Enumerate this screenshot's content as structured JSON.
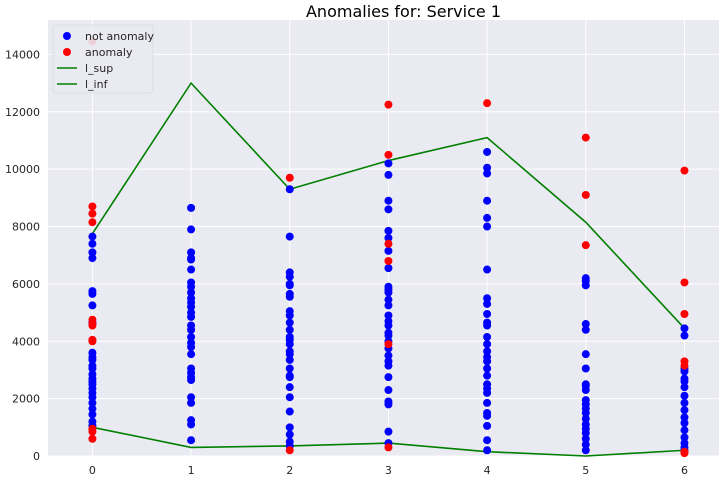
{
  "chart_data": {
    "type": "scatter",
    "title": "Anomalies for: Service 1",
    "xlabel": "",
    "ylabel": "",
    "xlim": [
      -0.45,
      6.35
    ],
    "ylim": [
      0,
      15200
    ],
    "x_ticks": [
      0,
      1,
      2,
      3,
      4,
      5,
      6
    ],
    "y_ticks": [
      0,
      2000,
      4000,
      6000,
      8000,
      10000,
      12000,
      14000
    ],
    "grid": true,
    "legend_position": "top-left",
    "colors": {
      "background": "#eaeaf2",
      "grid": "#ffffff",
      "not_anomaly": "#0000ff",
      "anomaly": "#ff0000",
      "bounds": "#008000"
    },
    "legend": [
      {
        "label": "not anomaly",
        "kind": "marker",
        "color": "#0000ff"
      },
      {
        "label": "anomaly",
        "kind": "marker",
        "color": "#ff0000"
      },
      {
        "label": "l_sup",
        "kind": "line",
        "color": "#008000"
      },
      {
        "label": "l_inf",
        "kind": "line",
        "color": "#008000"
      }
    ],
    "series": [
      {
        "name": "not anomaly",
        "color": "#0000ff",
        "points": [
          [
            0,
            7650
          ],
          [
            0,
            7400
          ],
          [
            0,
            7100
          ],
          [
            0,
            6900
          ],
          [
            0,
            5750
          ],
          [
            0,
            5650
          ],
          [
            0,
            5250
          ],
          [
            0,
            4650
          ],
          [
            0,
            3600
          ],
          [
            0,
            3450
          ],
          [
            0,
            3350
          ],
          [
            0,
            3150
          ],
          [
            0,
            3050
          ],
          [
            0,
            2850
          ],
          [
            0,
            2700
          ],
          [
            0,
            2600
          ],
          [
            0,
            2500
          ],
          [
            0,
            2350
          ],
          [
            0,
            2200
          ],
          [
            0,
            2050
          ],
          [
            0,
            1850
          ],
          [
            0,
            1650
          ],
          [
            0,
            1450
          ],
          [
            0,
            1200
          ],
          [
            0,
            1050
          ],
          [
            1,
            8650
          ],
          [
            1,
            7900
          ],
          [
            1,
            7100
          ],
          [
            1,
            6900
          ],
          [
            1,
            6850
          ],
          [
            1,
            6500
          ],
          [
            1,
            6050
          ],
          [
            1,
            5900
          ],
          [
            1,
            5700
          ],
          [
            1,
            5500
          ],
          [
            1,
            5350
          ],
          [
            1,
            5200
          ],
          [
            1,
            5000
          ],
          [
            1,
            4850
          ],
          [
            1,
            4550
          ],
          [
            1,
            4400
          ],
          [
            1,
            4150
          ],
          [
            1,
            3950
          ],
          [
            1,
            3800
          ],
          [
            1,
            3550
          ],
          [
            1,
            3050
          ],
          [
            1,
            2900
          ],
          [
            1,
            2750
          ],
          [
            1,
            2650
          ],
          [
            1,
            2050
          ],
          [
            1,
            1850
          ],
          [
            1,
            1250
          ],
          [
            1,
            1100
          ],
          [
            1,
            550
          ],
          [
            2,
            9300
          ],
          [
            2,
            7650
          ],
          [
            2,
            6400
          ],
          [
            2,
            6250
          ],
          [
            2,
            6000
          ],
          [
            2,
            5950
          ],
          [
            2,
            5650
          ],
          [
            2,
            5550
          ],
          [
            2,
            5050
          ],
          [
            2,
            4900
          ],
          [
            2,
            4650
          ],
          [
            2,
            4400
          ],
          [
            2,
            4150
          ],
          [
            2,
            4050
          ],
          [
            2,
            3900
          ],
          [
            2,
            3650
          ],
          [
            2,
            3550
          ],
          [
            2,
            3350
          ],
          [
            2,
            3050
          ],
          [
            2,
            2800
          ],
          [
            2,
            2750
          ],
          [
            2,
            2400
          ],
          [
            2,
            2050
          ],
          [
            2,
            1550
          ],
          [
            2,
            1000
          ],
          [
            2,
            750
          ],
          [
            2,
            500
          ],
          [
            2,
            350
          ],
          [
            3,
            10200
          ],
          [
            3,
            9800
          ],
          [
            3,
            8900
          ],
          [
            3,
            8600
          ],
          [
            3,
            7850
          ],
          [
            3,
            7600
          ],
          [
            3,
            7150
          ],
          [
            3,
            6550
          ],
          [
            3,
            5900
          ],
          [
            3,
            5800
          ],
          [
            3,
            5700
          ],
          [
            3,
            5450
          ],
          [
            3,
            5250
          ],
          [
            3,
            4900
          ],
          [
            3,
            4700
          ],
          [
            3,
            4550
          ],
          [
            3,
            4300
          ],
          [
            3,
            4200
          ],
          [
            3,
            4000
          ],
          [
            3,
            3750
          ],
          [
            3,
            3500
          ],
          [
            3,
            3300
          ],
          [
            3,
            3150
          ],
          [
            3,
            2750
          ],
          [
            3,
            2300
          ],
          [
            3,
            1900
          ],
          [
            3,
            1800
          ],
          [
            3,
            850
          ],
          [
            3,
            450
          ],
          [
            4,
            10600
          ],
          [
            4,
            10050
          ],
          [
            4,
            9850
          ],
          [
            4,
            8900
          ],
          [
            4,
            8300
          ],
          [
            4,
            8000
          ],
          [
            4,
            6500
          ],
          [
            4,
            5500
          ],
          [
            4,
            5300
          ],
          [
            4,
            4950
          ],
          [
            4,
            4650
          ],
          [
            4,
            4550
          ],
          [
            4,
            4150
          ],
          [
            4,
            3900
          ],
          [
            4,
            3650
          ],
          [
            4,
            3450
          ],
          [
            4,
            3300
          ],
          [
            4,
            3050
          ],
          [
            4,
            2800
          ],
          [
            4,
            2500
          ],
          [
            4,
            2350
          ],
          [
            4,
            2200
          ],
          [
            4,
            1850
          ],
          [
            4,
            1500
          ],
          [
            4,
            1400
          ],
          [
            4,
            1050
          ],
          [
            4,
            550
          ],
          [
            4,
            200
          ],
          [
            5,
            6200
          ],
          [
            5,
            6100
          ],
          [
            5,
            5950
          ],
          [
            5,
            4600
          ],
          [
            5,
            4400
          ],
          [
            5,
            3550
          ],
          [
            5,
            3050
          ],
          [
            5,
            2500
          ],
          [
            5,
            2450
          ],
          [
            5,
            2300
          ],
          [
            5,
            1950
          ],
          [
            5,
            1800
          ],
          [
            5,
            1650
          ],
          [
            5,
            1500
          ],
          [
            5,
            1300
          ],
          [
            5,
            1100
          ],
          [
            5,
            950
          ],
          [
            5,
            800
          ],
          [
            5,
            600
          ],
          [
            5,
            400
          ],
          [
            5,
            200
          ],
          [
            6,
            4450
          ],
          [
            6,
            4200
          ],
          [
            6,
            3050
          ],
          [
            6,
            2950
          ],
          [
            6,
            2700
          ],
          [
            6,
            2600
          ],
          [
            6,
            2400
          ],
          [
            6,
            2100
          ],
          [
            6,
            1850
          ],
          [
            6,
            1600
          ],
          [
            6,
            1350
          ],
          [
            6,
            1150
          ],
          [
            6,
            900
          ],
          [
            6,
            650
          ],
          [
            6,
            450
          ],
          [
            6,
            300
          ],
          [
            6,
            200
          ]
        ]
      },
      {
        "name": "anomaly",
        "color": "#ff0000",
        "points": [
          [
            0,
            14450
          ],
          [
            0,
            8700
          ],
          [
            0,
            8450
          ],
          [
            0,
            8150
          ],
          [
            0,
            4750
          ],
          [
            0,
            4600
          ],
          [
            0,
            4550
          ],
          [
            0,
            4050
          ],
          [
            0,
            4000
          ],
          [
            0,
            950
          ],
          [
            0,
            850
          ],
          [
            0,
            600
          ],
          [
            2,
            9700
          ],
          [
            2,
            200
          ],
          [
            3,
            12250
          ],
          [
            3,
            10500
          ],
          [
            3,
            7400
          ],
          [
            3,
            6800
          ],
          [
            3,
            3900
          ],
          [
            3,
            300
          ],
          [
            4,
            12300
          ],
          [
            5,
            11100
          ],
          [
            5,
            9100
          ],
          [
            5,
            7350
          ],
          [
            6,
            9950
          ],
          [
            6,
            6050
          ],
          [
            6,
            4950
          ],
          [
            6,
            3300
          ],
          [
            6,
            3150
          ],
          [
            6,
            150
          ],
          [
            6,
            100
          ]
        ]
      }
    ],
    "lines": [
      {
        "name": "l_sup",
        "color": "#008000",
        "x": [
          0,
          1,
          2,
          3,
          4,
          5,
          6
        ],
        "y": [
          7750,
          13000,
          9300,
          10300,
          11100,
          8150,
          4450
        ]
      },
      {
        "name": "l_inf",
        "color": "#008000",
        "x": [
          0,
          1,
          2,
          3,
          4,
          5,
          6
        ],
        "y": [
          1000,
          300,
          350,
          450,
          150,
          0,
          200
        ]
      }
    ]
  }
}
